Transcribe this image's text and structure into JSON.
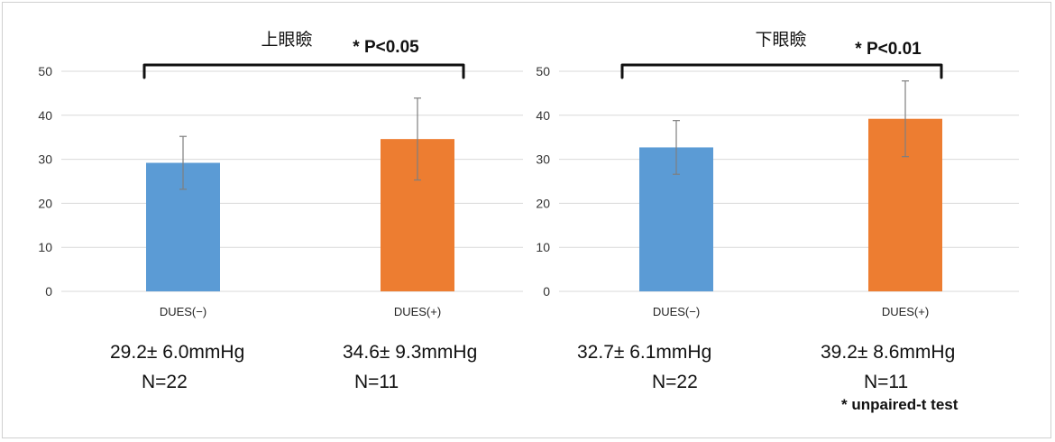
{
  "colors": {
    "dues_minus": "#5b9bd5",
    "dues_plus": "#ed7d31",
    "grid": "#d9d9d9",
    "errorbar": "#7f7f7f"
  },
  "chart_data": [
    {
      "type": "bar",
      "title": "上眼瞼",
      "significance": "* P<0.05",
      "categories": [
        "DUES(−)",
        "DUES(+)"
      ],
      "values": [
        29.2,
        34.6
      ],
      "error": [
        6.0,
        9.3
      ],
      "ylim": [
        0,
        50
      ],
      "yticks": [
        0,
        10,
        20,
        30,
        40,
        50
      ],
      "grid": true,
      "stats": [
        {
          "mean_sd": "29.2± 6.0mmHg",
          "n": "N=22"
        },
        {
          "mean_sd": "34.6± 9.3mmHg",
          "n": "N=11"
        }
      ]
    },
    {
      "type": "bar",
      "title": "下眼瞼",
      "significance": "* P<0.01",
      "categories": [
        "DUES(−)",
        "DUES(+)"
      ],
      "values": [
        32.7,
        39.2
      ],
      "error": [
        6.1,
        8.6
      ],
      "ylim": [
        0,
        50
      ],
      "yticks": [
        0,
        10,
        20,
        30,
        40,
        50
      ],
      "grid": true,
      "stats": [
        {
          "mean_sd": "32.7± 6.1mmHg",
          "n": "N=22"
        },
        {
          "mean_sd": "39.2± 8.6mmHg",
          "n": "N=11"
        }
      ]
    }
  ],
  "footnote": "* unpaired-t test"
}
